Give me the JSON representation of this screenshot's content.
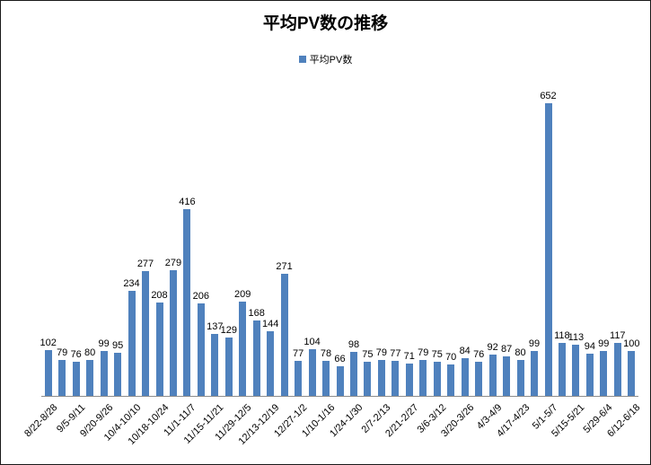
{
  "title": "平均PV数の推移",
  "legend": {
    "label": "平均PV数",
    "color": "#4F81BD"
  },
  "chart_data": {
    "type": "bar",
    "title": "平均PV数の推移",
    "series_name": "平均PV数",
    "values": [
      102,
      79,
      76,
      80,
      99,
      95,
      234,
      277,
      208,
      279,
      416,
      206,
      137,
      129,
      209,
      168,
      144,
      271,
      77,
      104,
      78,
      66,
      98,
      75,
      79,
      77,
      71,
      79,
      75,
      70,
      84,
      76,
      92,
      87,
      80,
      99,
      652,
      118,
      113,
      94,
      99,
      117,
      100
    ],
    "x_tick_labels": [
      "8/22-8/28",
      "9/5-9/11",
      "9/20-9/26",
      "10/4-10/10",
      "10/18-10/24",
      "11/1-11/7",
      "11/15-11/21",
      "11/29-12/5",
      "12/13-12/19",
      "12/27-1/2",
      "1/10-1/16",
      "1/24-1/30",
      "2/7-2/13",
      "2/21-2/27",
      "3/6-3/12",
      "3/20-3/26",
      "4/3-4/9",
      "4/17-4/23",
      "5/1-5/7",
      "5/15-5/21",
      "5/29-6/4",
      "6/12-6/18"
    ],
    "tick_every": 2,
    "data_labels": true,
    "grid": false,
    "ylim": [
      0,
      680
    ],
    "bar_color": "#4F81BD",
    "legend_position": "top"
  }
}
